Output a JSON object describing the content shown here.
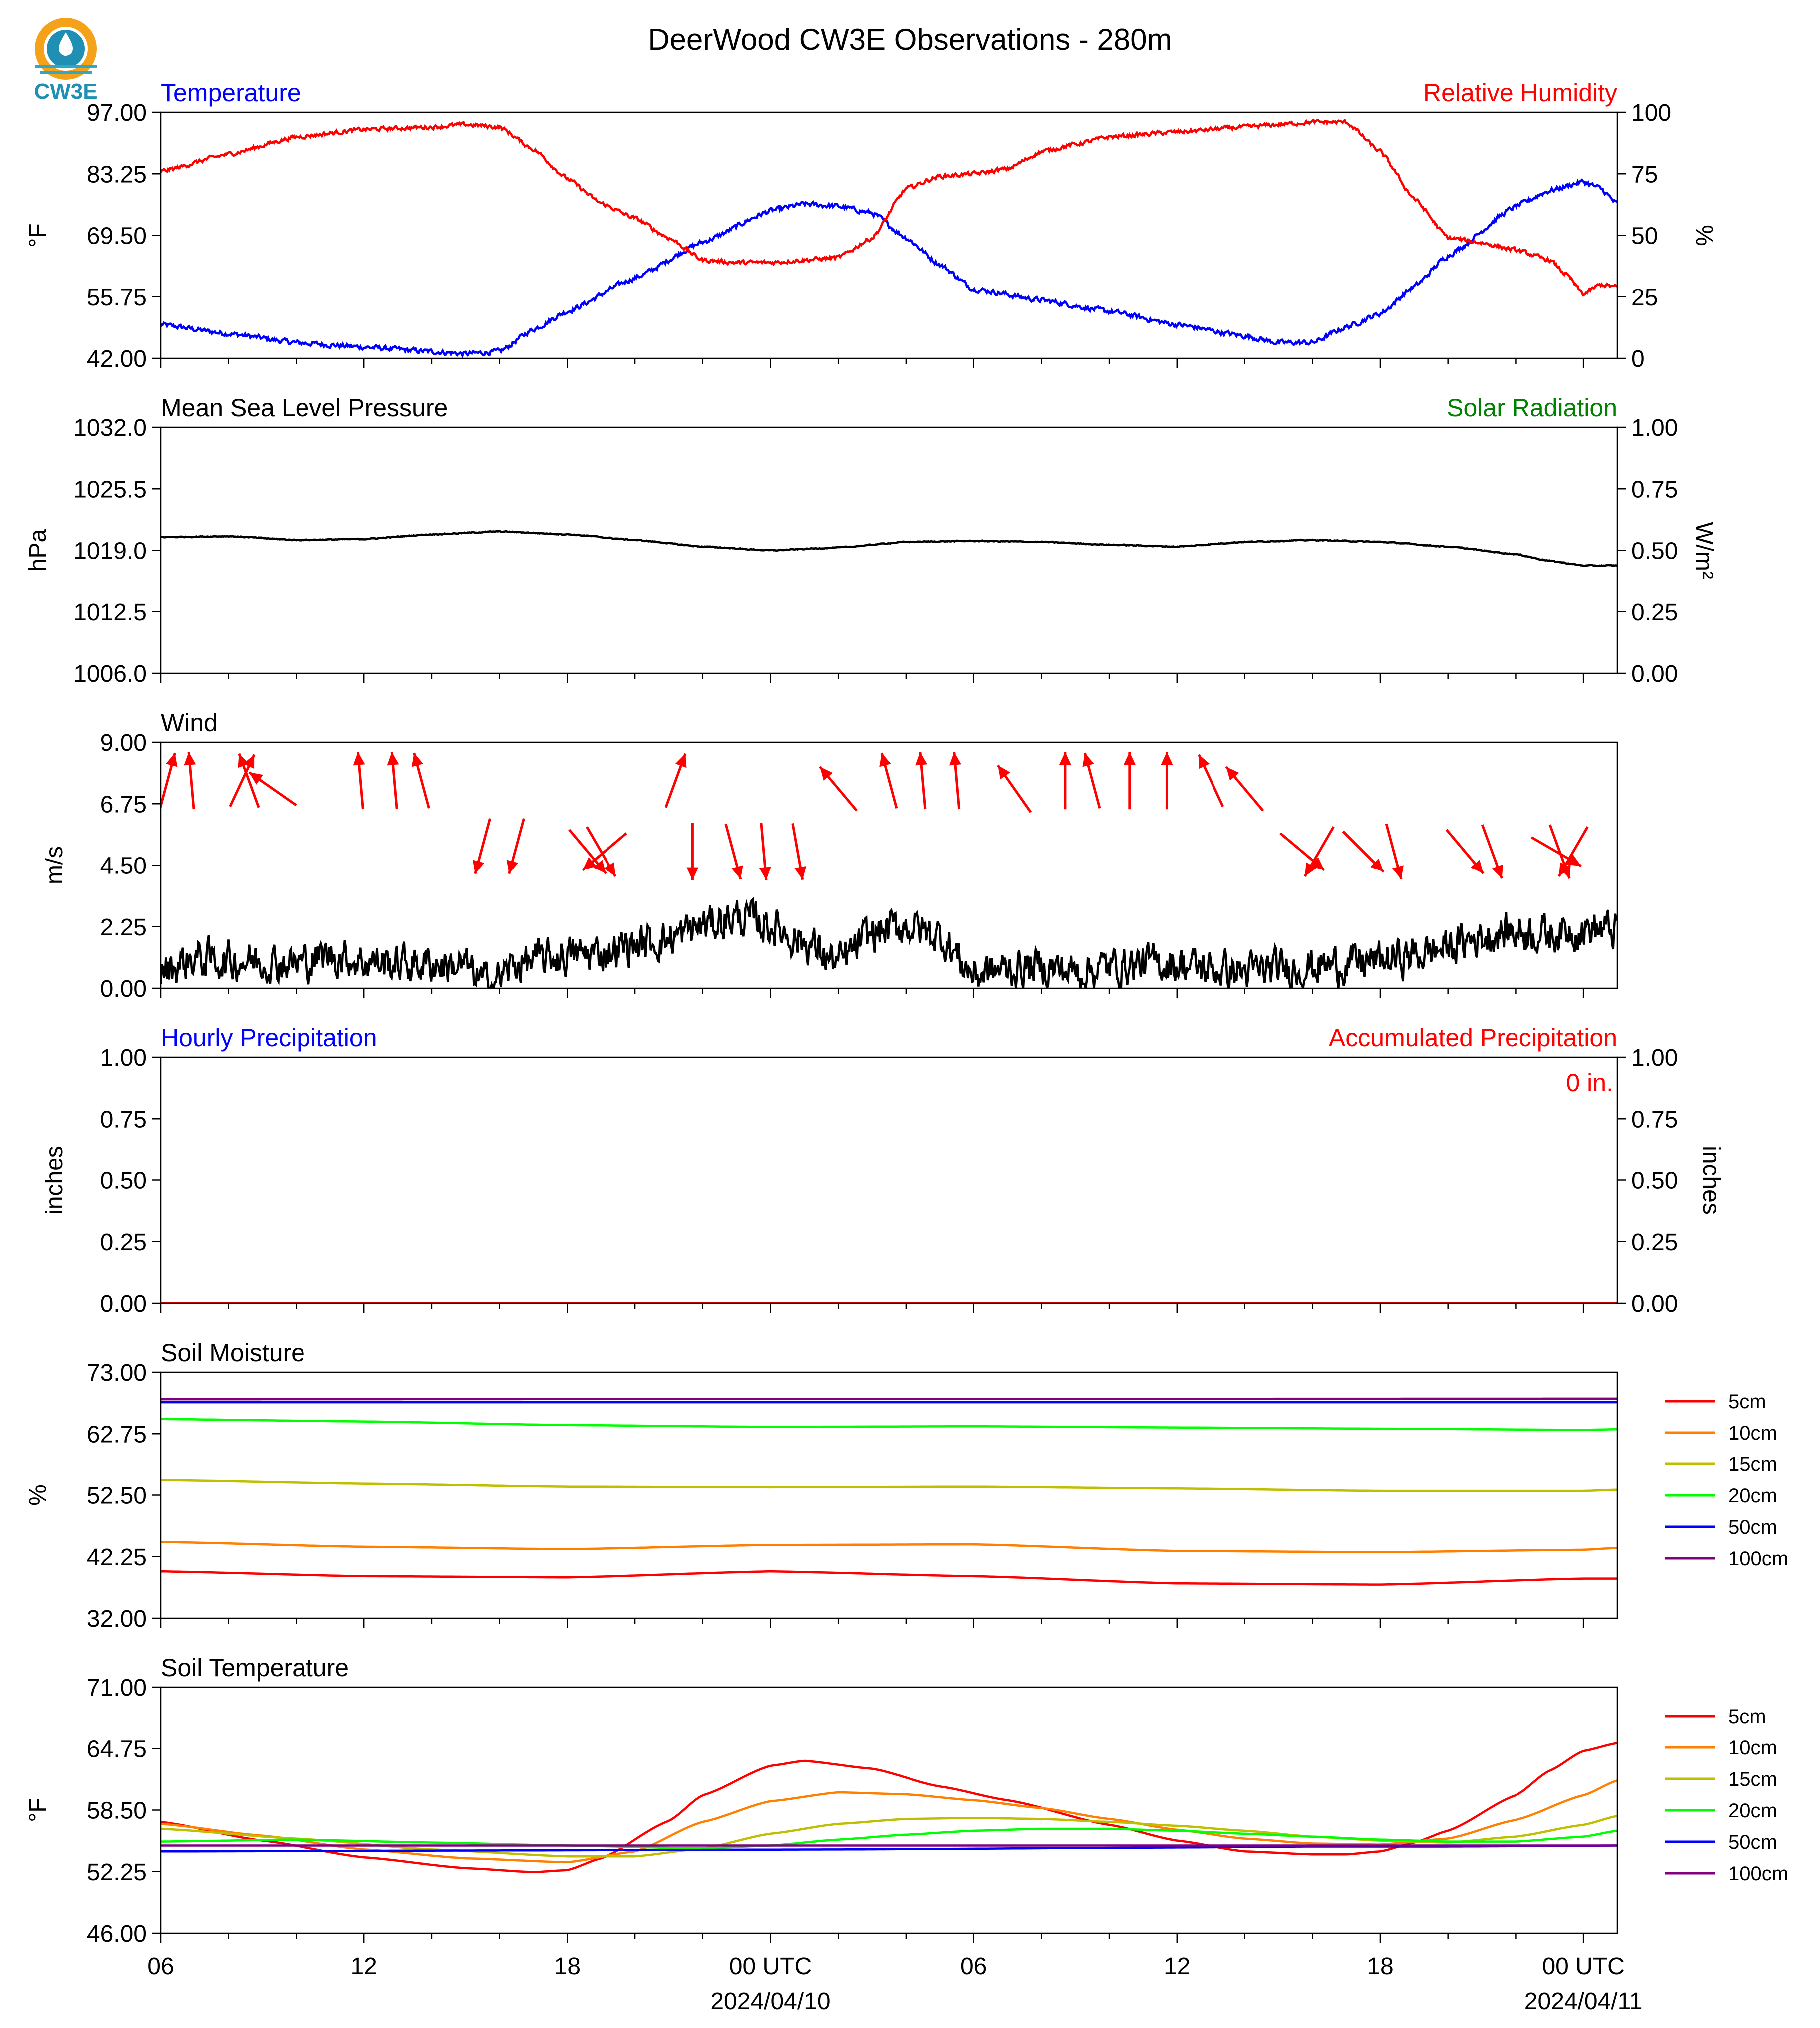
{
  "title": "DeerWood CW3E Observations - 280m",
  "logo": {
    "text": "CW3E",
    "colors": {
      "orange": "#f5a21b",
      "teal": "#1f8fb3",
      "water": "#2da8c7"
    }
  },
  "x_axis": {
    "ticks": [
      {
        "hours": 0,
        "label": "06"
      },
      {
        "hours": 6,
        "label": "12"
      },
      {
        "hours": 12,
        "label": "18"
      },
      {
        "hours": 18,
        "label": "00 UTC",
        "date": "2024/04/10"
      },
      {
        "hours": 24,
        "label": "06"
      },
      {
        "hours": 30,
        "label": "12"
      },
      {
        "hours": 36,
        "label": "18"
      },
      {
        "hours": 42,
        "label": "00 UTC",
        "date": "2024/04/11"
      }
    ],
    "range_hours": [
      0,
      43
    ]
  },
  "chart_data": [
    {
      "id": "temp_rh",
      "type": "line",
      "title_left": "Temperature",
      "title_right": "Relative Humidity",
      "title_left_color": "#0000ff",
      "title_right_color": "#ff0000",
      "ylabel": "°F",
      "ylabel_right": "%",
      "ylim": [
        42.0,
        97.0
      ],
      "yticks": [
        "42.00",
        "55.75",
        "69.50",
        "83.25",
        "97.00"
      ],
      "ylim_right": [
        0,
        100
      ],
      "yticks_right": [
        "0",
        "25",
        "50",
        "75",
        "100"
      ],
      "series": [
        {
          "axis": "left",
          "color": "#0000ff",
          "noise": 0.6,
          "x": [
            0,
            2,
            4,
            6,
            8,
            9,
            10,
            11,
            12,
            14,
            16,
            18,
            19,
            20,
            21,
            22,
            23,
            24,
            26,
            28,
            30,
            32,
            33,
            34,
            35,
            36,
            37,
            38,
            40,
            41,
            42,
            42.5,
            43
          ],
          "y": [
            49.5,
            47.5,
            45.5,
            44.5,
            43.5,
            43.0,
            43.5,
            48.5,
            52.5,
            60.0,
            68.0,
            75.0,
            76.5,
            76.0,
            74.5,
            69.0,
            63.0,
            57.5,
            55.0,
            52.5,
            49.5,
            47.0,
            45.5,
            45.5,
            49.0,
            52.0,
            58.0,
            65.0,
            76.0,
            79.5,
            81.5,
            80.0,
            76.5
          ]
        },
        {
          "axis": "right",
          "color": "#ff0000",
          "noise": 0.9,
          "x": [
            0,
            2,
            4,
            6,
            8,
            9,
            10,
            11,
            12,
            13,
            14,
            15,
            16,
            17,
            18,
            19,
            20,
            21,
            22,
            23,
            24,
            25,
            26,
            27,
            28,
            30,
            32,
            33,
            34,
            35,
            36,
            37,
            38,
            39,
            40,
            41,
            41.5,
            42,
            42.5,
            43
          ],
          "y": [
            76,
            83,
            90,
            93,
            94,
            95,
            94,
            85,
            73,
            63,
            57,
            49,
            40,
            39,
            39,
            40,
            41,
            49,
            69,
            74,
            75,
            77,
            84,
            87,
            90,
            92,
            94,
            95,
            96,
            96,
            84,
            65,
            49,
            47,
            44,
            40,
            34,
            26,
            30,
            29
          ]
        }
      ]
    },
    {
      "id": "pressure",
      "type": "line",
      "title_left": "Mean Sea Level Pressure",
      "title_right": "Solar Radiation",
      "title_left_color": "#000000",
      "title_right_color": "#008000",
      "ylabel": "hPa",
      "ylabel_right": "W/m²",
      "ylim": [
        1006.0,
        1032.0
      ],
      "yticks": [
        "1006.0",
        "1012.5",
        "1019.0",
        "1025.5",
        "1032.0"
      ],
      "ylim_right": [
        0.0,
        1.0
      ],
      "yticks_right": [
        "0.00",
        "0.25",
        "0.50",
        "0.75",
        "1.00"
      ],
      "series": [
        {
          "axis": "left",
          "color": "#000000",
          "noise": 0.05,
          "x": [
            0,
            2,
            4,
            6,
            8,
            10,
            12,
            14,
            16,
            18,
            20,
            22,
            24,
            26,
            28,
            30,
            32,
            34,
            36,
            38,
            40,
            41,
            42,
            43
          ],
          "y": [
            1020.4,
            1020.5,
            1020.1,
            1020.2,
            1020.7,
            1021.0,
            1020.7,
            1020.1,
            1019.4,
            1019.0,
            1019.3,
            1019.9,
            1020.0,
            1019.9,
            1019.6,
            1019.4,
            1019.9,
            1020.1,
            1019.9,
            1019.4,
            1018.6,
            1017.9,
            1017.4,
            1017.4
          ]
        }
      ]
    },
    {
      "id": "wind",
      "type": "line",
      "title_left": "Wind",
      "title_left_color": "#000000",
      "ylabel": "m/s",
      "ylim": [
        0.0,
        9.0
      ],
      "yticks": [
        "0.00",
        "2.25",
        "4.50",
        "6.75",
        "9.00"
      ],
      "series": [
        {
          "axis": "left",
          "color": "#000000",
          "noise": 0.75,
          "x": [
            0,
            1,
            2,
            3,
            4,
            5,
            6,
            7,
            8,
            9,
            9.5,
            10,
            10.5,
            11,
            12,
            13,
            14,
            15,
            16,
            17,
            18,
            19,
            20,
            21,
            22,
            23,
            24,
            25,
            26,
            27,
            28,
            29,
            30,
            31,
            32,
            33,
            34,
            35,
            36,
            37,
            38,
            39,
            40,
            41,
            42,
            43
          ],
          "y": [
            0.6,
            1.1,
            1.0,
            1.0,
            0.9,
            1.2,
            1.0,
            0.9,
            0.9,
            0.8,
            0.2,
            0.4,
            0.9,
            1.0,
            1.2,
            1.3,
            1.6,
            1.8,
            2.3,
            2.6,
            2.3,
            1.7,
            0.9,
            2.0,
            2.3,
            1.9,
            0.5,
            0.7,
            0.8,
            0.6,
            0.8,
            0.9,
            0.9,
            0.7,
            0.6,
            0.7,
            0.8,
            0.9,
            1.0,
            1.2,
            1.5,
            1.9,
            2.1,
            2.0,
            2.2,
            2.1
          ]
        }
      ],
      "arrows": [
        {
          "x": 0.2,
          "y": 7.6,
          "dir": 15
        },
        {
          "x": 0.9,
          "y": 7.6,
          "dir": 355
        },
        {
          "x": 2.4,
          "y": 7.6,
          "dir": 25
        },
        {
          "x": 2.6,
          "y": 7.6,
          "dir": 340
        },
        {
          "x": 3.3,
          "y": 7.3,
          "dir": 305
        },
        {
          "x": 5.9,
          "y": 7.6,
          "dir": 355
        },
        {
          "x": 6.9,
          "y": 7.6,
          "dir": 355
        },
        {
          "x": 7.7,
          "y": 7.6,
          "dir": 345
        },
        {
          "x": 9.5,
          "y": 5.2,
          "dir": 195
        },
        {
          "x": 10.5,
          "y": 5.2,
          "dir": 195
        },
        {
          "x": 12.6,
          "y": 5.0,
          "dir": 140
        },
        {
          "x": 13.0,
          "y": 5.0,
          "dir": 150
        },
        {
          "x": 13.1,
          "y": 5.0,
          "dir": 230
        },
        {
          "x": 15.2,
          "y": 7.6,
          "dir": 20
        },
        {
          "x": 15.7,
          "y": 5.0,
          "dir": 180
        },
        {
          "x": 16.9,
          "y": 5.0,
          "dir": 165
        },
        {
          "x": 17.8,
          "y": 5.0,
          "dir": 175
        },
        {
          "x": 18.8,
          "y": 5.0,
          "dir": 170
        },
        {
          "x": 20.0,
          "y": 7.3,
          "dir": 320
        },
        {
          "x": 21.5,
          "y": 7.6,
          "dir": 345
        },
        {
          "x": 22.5,
          "y": 7.6,
          "dir": 355
        },
        {
          "x": 23.5,
          "y": 7.6,
          "dir": 355
        },
        {
          "x": 25.2,
          "y": 7.3,
          "dir": 325
        },
        {
          "x": 26.7,
          "y": 7.6,
          "dir": 0
        },
        {
          "x": 27.5,
          "y": 7.6,
          "dir": 345
        },
        {
          "x": 28.6,
          "y": 7.6,
          "dir": 0
        },
        {
          "x": 29.7,
          "y": 7.6,
          "dir": 0
        },
        {
          "x": 31.0,
          "y": 7.6,
          "dir": 335
        },
        {
          "x": 32.0,
          "y": 7.3,
          "dir": 320
        },
        {
          "x": 33.7,
          "y": 5.0,
          "dir": 130
        },
        {
          "x": 34.2,
          "y": 5.0,
          "dir": 210
        },
        {
          "x": 35.5,
          "y": 5.0,
          "dir": 135
        },
        {
          "x": 36.4,
          "y": 5.0,
          "dir": 165
        },
        {
          "x": 38.5,
          "y": 5.0,
          "dir": 140
        },
        {
          "x": 39.3,
          "y": 5.0,
          "dir": 160
        },
        {
          "x": 41.2,
          "y": 5.0,
          "dir": 120
        },
        {
          "x": 41.3,
          "y": 5.0,
          "dir": 160
        },
        {
          "x": 41.7,
          "y": 5.0,
          "dir": 210
        }
      ],
      "arrow_color": "#ff0000"
    },
    {
      "id": "precip",
      "type": "line",
      "title_left": "Hourly Precipitation",
      "title_right": "Accumulated Precipitation",
      "title_left_color": "#0000ff",
      "title_right_color": "#ff0000",
      "ylabel": "inches",
      "ylabel_right": "inches",
      "ylim": [
        0.0,
        1.0
      ],
      "yticks": [
        "0.00",
        "0.25",
        "0.50",
        "0.75",
        "1.00"
      ],
      "ylim_right": [
        0.0,
        1.0
      ],
      "yticks_right": [
        "0.00",
        "0.25",
        "0.50",
        "0.75",
        "1.00"
      ],
      "annotation": "0 in.",
      "annotation_color": "#ff0000",
      "series": [
        {
          "axis": "left",
          "color": "#0000ff",
          "x": [
            0,
            43
          ],
          "y": [
            0,
            0
          ]
        },
        {
          "axis": "left",
          "color": "#ff0000",
          "x": [
            0,
            43
          ],
          "y": [
            0,
            0
          ]
        }
      ]
    },
    {
      "id": "soil_moisture",
      "type": "line",
      "title_left": "Soil Moisture",
      "title_left_color": "#000000",
      "ylabel": "%",
      "ylim": [
        32.0,
        73.0
      ],
      "yticks": [
        "32.00",
        "42.25",
        "52.50",
        "62.75",
        "73.00"
      ],
      "legend": "right",
      "series": [
        {
          "name": "5cm",
          "color": "#ff0000",
          "x": [
            0,
            6,
            12,
            18,
            24,
            30,
            36,
            42,
            43
          ],
          "y": [
            39.8,
            39.0,
            38.8,
            39.8,
            39.0,
            37.8,
            37.6,
            38.6,
            38.6
          ]
        },
        {
          "name": "10cm",
          "color": "#ff8000",
          "x": [
            0,
            6,
            12,
            18,
            24,
            30,
            36,
            42,
            43
          ],
          "y": [
            44.7,
            43.9,
            43.5,
            44.2,
            44.3,
            43.2,
            43.0,
            43.4,
            43.7
          ]
        },
        {
          "name": "15cm",
          "color": "#bfbf00",
          "x": [
            0,
            6,
            12,
            18,
            24,
            30,
            36,
            42,
            43
          ],
          "y": [
            55.0,
            54.4,
            53.9,
            53.8,
            53.9,
            53.6,
            53.2,
            53.2,
            53.4
          ]
        },
        {
          "name": "20cm",
          "color": "#00ff00",
          "x": [
            0,
            6,
            12,
            18,
            24,
            30,
            36,
            42,
            43
          ],
          "y": [
            65.2,
            64.8,
            64.2,
            63.9,
            64.0,
            63.8,
            63.6,
            63.4,
            63.5
          ]
        },
        {
          "name": "50cm",
          "color": "#0000ff",
          "x": [
            0,
            43
          ],
          "y": [
            68.0,
            68.0
          ]
        },
        {
          "name": "100cm",
          "color": "#800080",
          "x": [
            0,
            43
          ],
          "y": [
            68.5,
            68.6
          ]
        }
      ]
    },
    {
      "id": "soil_temperature",
      "type": "line",
      "title_left": "Soil Temperature",
      "title_left_color": "#000000",
      "ylabel": "°F",
      "ylim": [
        46.0,
        71.0
      ],
      "yticks": [
        "46.00",
        "52.25",
        "58.50",
        "64.75",
        "71.00"
      ],
      "legend": "right",
      "series": [
        {
          "name": "5cm",
          "color": "#ff0000",
          "x": [
            0,
            3,
            6,
            9,
            11,
            12,
            13,
            15,
            16,
            18,
            19,
            21,
            23,
            25,
            28,
            30,
            32,
            34,
            35,
            36,
            37,
            38,
            40,
            41,
            42,
            43
          ],
          "y": [
            57.3,
            55.4,
            53.7,
            52.6,
            52.2,
            52.4,
            53.6,
            57.4,
            60.0,
            63.0,
            63.5,
            62.7,
            60.9,
            59.5,
            57.0,
            55.4,
            54.3,
            54.0,
            54.0,
            54.3,
            55.2,
            56.4,
            60.0,
            62.5,
            64.5,
            65.3
          ]
        },
        {
          "name": "10cm",
          "color": "#ff8000",
          "x": [
            0,
            3,
            6,
            9,
            12,
            14,
            16,
            18,
            20,
            22,
            24,
            26,
            28,
            30,
            32,
            34,
            36,
            38,
            40,
            42,
            43
          ],
          "y": [
            57.1,
            55.9,
            54.5,
            53.6,
            53.2,
            54.3,
            57.3,
            59.4,
            60.3,
            60.1,
            59.5,
            58.7,
            57.6,
            56.5,
            55.6,
            55.1,
            55.0,
            55.6,
            57.5,
            60.0,
            61.5
          ]
        },
        {
          "name": "15cm",
          "color": "#bfbf00",
          "x": [
            0,
            4,
            8,
            12,
            14,
            16,
            18,
            20,
            22,
            24,
            26,
            28,
            30,
            32,
            34,
            36,
            38,
            40,
            42,
            43
          ],
          "y": [
            56.6,
            55.6,
            54.5,
            53.8,
            53.8,
            54.6,
            56.1,
            57.1,
            57.6,
            57.7,
            57.6,
            57.3,
            56.9,
            56.4,
            55.8,
            55.4,
            55.2,
            55.8,
            57.0,
            57.9
          ]
        },
        {
          "name": "20cm",
          "color": "#00ff00",
          "x": [
            0,
            4,
            8,
            12,
            16,
            18,
            20,
            22,
            24,
            26,
            28,
            30,
            32,
            34,
            36,
            38,
            40,
            42,
            43
          ],
          "y": [
            55.3,
            55.5,
            55.2,
            54.9,
            54.6,
            54.9,
            55.5,
            56.0,
            56.4,
            56.6,
            56.6,
            56.4,
            56.1,
            55.8,
            55.5,
            55.3,
            55.3,
            55.8,
            56.4
          ]
        },
        {
          "name": "50cm",
          "color": "#0000ff",
          "x": [
            0,
            10,
            20,
            30,
            34,
            38,
            43
          ],
          "y": [
            54.3,
            54.4,
            54.5,
            54.7,
            54.8,
            54.8,
            54.9
          ]
        },
        {
          "name": "100cm",
          "color": "#800080",
          "x": [
            0,
            10,
            20,
            30,
            43
          ],
          "y": [
            54.9,
            54.9,
            54.9,
            54.9,
            54.9
          ]
        }
      ]
    }
  ]
}
